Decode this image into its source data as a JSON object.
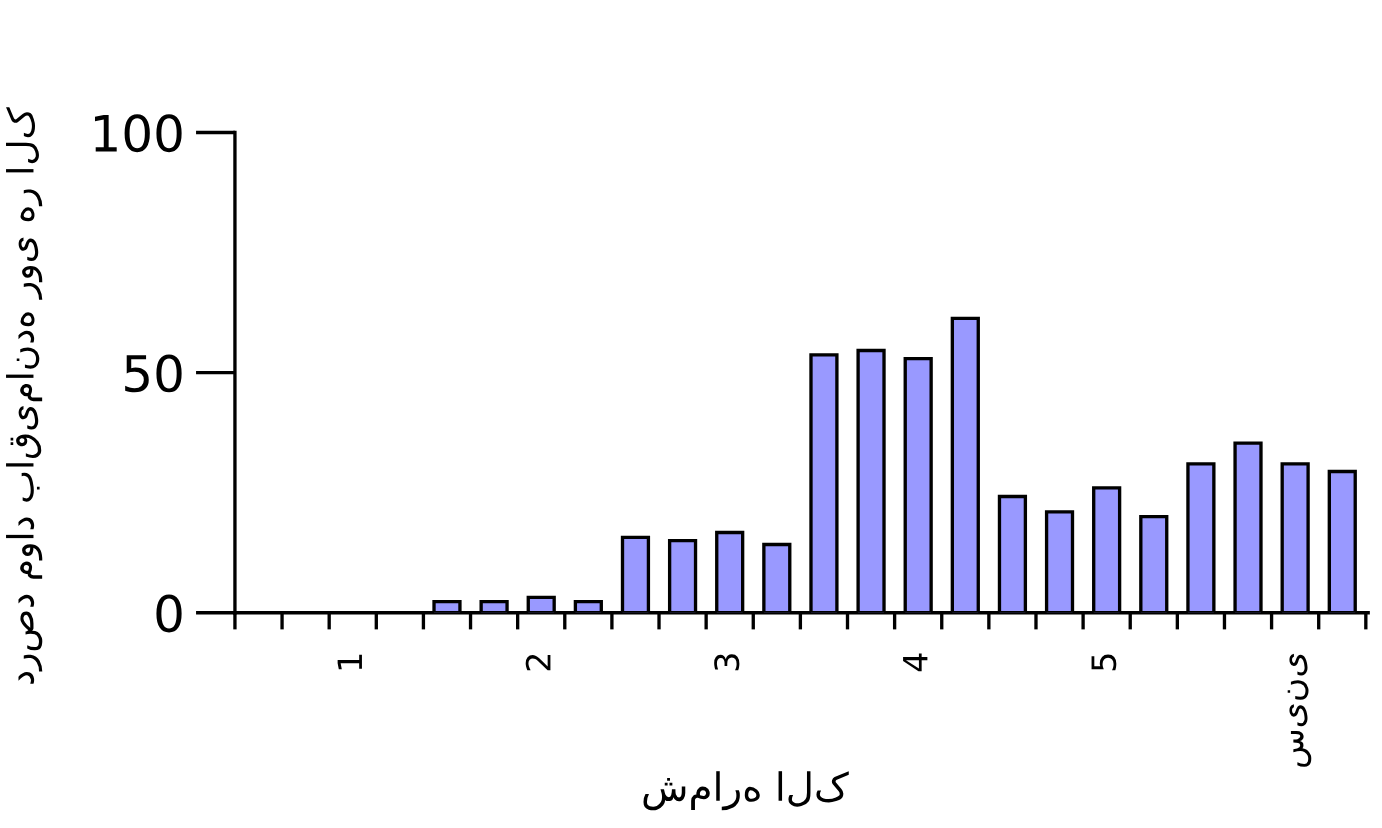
{
  "chart_data": {
    "type": "bar",
    "xlabel": "شماره الک",
    "ylabel": "درصد مواد باقیمانده روی هر الک",
    "categories": [
      null,
      null,
      "1",
      null,
      null,
      null,
      "2",
      null,
      null,
      null,
      "3",
      null,
      null,
      null,
      "4",
      null,
      null,
      null,
      "5",
      null,
      null,
      null,
      "سینی",
      null
    ],
    "values": [
      0,
      0,
      0,
      0,
      2.3,
      2.3,
      3.2,
      2.3,
      15.7,
      15,
      16.7,
      14.2,
      53.7,
      54.6,
      52.9,
      61.3,
      24.2,
      21,
      26,
      20,
      31,
      35.3,
      31,
      29.4
    ],
    "color": "#9999ff",
    "ylim": [
      0,
      100
    ],
    "yticks": [
      0,
      50,
      100
    ],
    "grid": false,
    "legend": false
  }
}
